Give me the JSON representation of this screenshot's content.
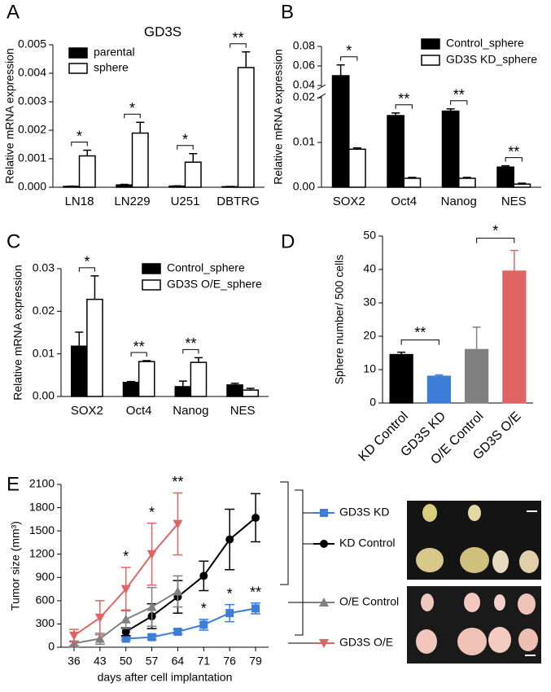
{
  "chart_data": [
    {
      "panel": "A",
      "type": "bar",
      "title": "GD3S",
      "ylabel": "Relative mRNA expression",
      "categories": [
        "LN18",
        "LN229",
        "U251",
        "DBTRG"
      ],
      "series": [
        {
          "name": "parental",
          "color": "#000000",
          "values": [
            3e-05,
            8e-05,
            4e-05,
            2e-05
          ],
          "errors": [
            1e-05,
            2e-05,
            1e-05,
            1e-05
          ]
        },
        {
          "name": "sphere",
          "color": "#ffffff",
          "values": [
            0.0011,
            0.0019,
            0.00088,
            0.0042
          ],
          "errors": [
            0.0002,
            0.00038,
            0.0003,
            0.00055
          ]
        }
      ],
      "significance": [
        "*",
        "*",
        "*",
        "**"
      ],
      "ylim": [
        0,
        0.005
      ],
      "yticks": [
        {
          "value": 0,
          "label": "0.000"
        },
        0.001,
        0.002,
        0.003,
        0.004,
        0.005
      ]
    },
    {
      "panel": "B",
      "type": "bar",
      "ylabel": "Relative mRNA expression",
      "categories": [
        "SOX2",
        "Oct4",
        "Nanog",
        "NES"
      ],
      "series": [
        {
          "name": "Control_sphere",
          "color": "#000000",
          "values": [
            0.05,
            0.016,
            0.017,
            0.0045
          ],
          "errors": [
            0.011,
            0.0006,
            0.0005,
            0.0003
          ]
        },
        {
          "name": "GD3S KD_sphere",
          "color": "#ffffff",
          "values": [
            0.0085,
            0.002,
            0.002,
            0.0007
          ],
          "errors": [
            0.0003,
            0.0002,
            0.0002,
            0.0002
          ]
        }
      ],
      "significance": [
        "*",
        "**",
        "**",
        "**"
      ],
      "ylim": [
        0,
        0.08
      ],
      "ybreak": [
        0.02,
        0.04
      ],
      "yticks": [
        {
          "value": 0,
          "label": "0.00"
        },
        0.01,
        0.02,
        0.04,
        0.06,
        0.08
      ]
    },
    {
      "panel": "C",
      "type": "bar",
      "ylabel": "Relative mRNA expression",
      "categories": [
        "SOX2",
        "Oct4",
        "Nanog",
        "NES"
      ],
      "series": [
        {
          "name": "Control_sphere",
          "color": "#000000",
          "values": [
            0.0118,
            0.0033,
            0.0023,
            0.0027
          ],
          "errors": [
            0.0033,
            0.0002,
            0.0013,
            0.0004
          ]
        },
        {
          "name": "GD3S O/E_sphere",
          "color": "#ffffff",
          "values": [
            0.0228,
            0.0082,
            0.008,
            0.0015
          ],
          "errors": [
            0.0055,
            0.0002,
            0.0011,
            0.0004
          ]
        }
      ],
      "significance": [
        "*",
        "**",
        "**",
        null
      ],
      "ylim": [
        0,
        0.03
      ],
      "yticks": [
        {
          "value": 0,
          "label": "0.00"
        },
        0.01,
        0.02,
        0.03
      ]
    },
    {
      "panel": "D",
      "type": "bar",
      "ylabel": "Sphere number/ 500 cells",
      "categories": [
        "KD Control",
        "GD3S KD",
        "O/E Control",
        "GD3S O/E"
      ],
      "series": [
        {
          "colors": [
            "#000000",
            "#3b7dd8",
            "#808080",
            "#e06464"
          ],
          "values": [
            14.5,
            8,
            16,
            39.5
          ],
          "errors": [
            0.7,
            0.4,
            6.7,
            6.2
          ]
        }
      ],
      "brackets": [
        {
          "from": 0,
          "to": 1,
          "label": "**"
        },
        {
          "from": 2,
          "to": 3,
          "label": "*"
        }
      ],
      "ylim": [
        0,
        50
      ],
      "yticks": [
        0,
        10,
        20,
        30,
        40,
        50
      ]
    },
    {
      "panel": "E",
      "type": "line",
      "ylabel": "Tumor size (mm³)",
      "xlabel": "days after cell implantation",
      "categories": [
        36,
        43,
        50,
        57,
        64,
        71,
        76,
        79
      ],
      "series": [
        {
          "name": "GD3S KD",
          "color": "#3b7dd8",
          "marker": "square",
          "values": [
            null,
            null,
            110,
            130,
            200,
            290,
            440,
            500
          ],
          "errors": [
            null,
            null,
            20,
            30,
            30,
            70,
            110,
            70
          ],
          "significance": [
            null,
            null,
            null,
            null,
            null,
            "*",
            "*",
            "**"
          ]
        },
        {
          "name": "KD Control",
          "color": "#000000",
          "marker": "circle",
          "values": [
            null,
            null,
            200,
            400,
            650,
            920,
            1390,
            1670
          ],
          "errors": [
            null,
            null,
            50,
            160,
            210,
            190,
            390,
            310
          ]
        },
        {
          "name": "O/E Control",
          "color": "#808080",
          "marker": "triangle-up",
          "values": [
            50,
            110,
            360,
            520,
            720,
            null,
            null,
            null
          ],
          "errors": [
            30,
            70,
            120,
            250,
            200,
            null,
            null,
            null
          ]
        },
        {
          "name": "GD3S O/E",
          "color": "#e06464",
          "marker": "triangle-down",
          "values": [
            150,
            380,
            750,
            1200,
            1590,
            null,
            null,
            null
          ],
          "errors": [
            80,
            220,
            280,
            400,
            400,
            null,
            null,
            null
          ],
          "significance": [
            null,
            null,
            "*",
            "*",
            "**",
            null,
            null,
            null
          ]
        }
      ],
      "ylim": [
        0,
        2100
      ],
      "yticks": [
        0,
        300,
        600,
        900,
        1200,
        1500,
        1800,
        2100
      ]
    }
  ]
}
